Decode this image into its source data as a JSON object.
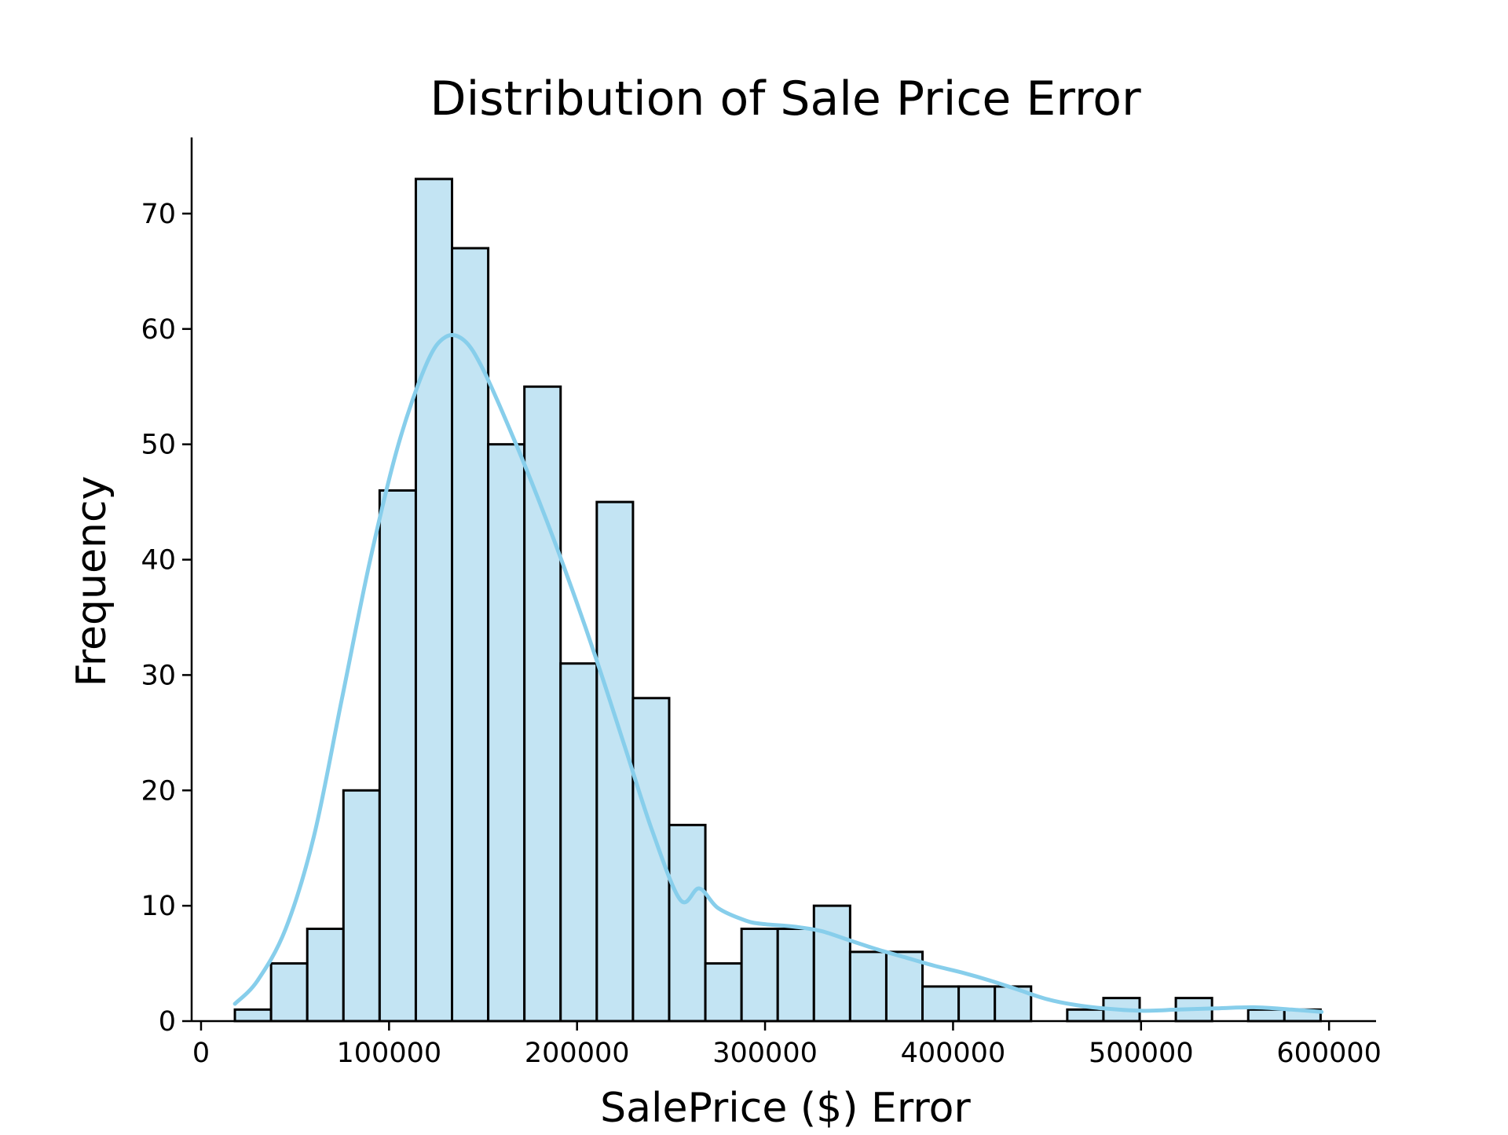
{
  "chart_data": {
    "type": "bar",
    "title": "Distribution of Sale Price Error",
    "xlabel": "SalePrice ($) Error",
    "ylabel": "Frequency",
    "xlim": [
      -5000,
      625000
    ],
    "ylim": [
      0,
      76.6
    ],
    "x_ticks": [
      0,
      100000,
      200000,
      300000,
      400000,
      500000,
      600000
    ],
    "x_tick_labels": [
      "0",
      "100000",
      "200000",
      "300000",
      "400000",
      "500000",
      "600000"
    ],
    "y_ticks": [
      0,
      10,
      20,
      30,
      40,
      50,
      60,
      70
    ],
    "y_tick_labels": [
      "0",
      "10",
      "20",
      "30",
      "40",
      "50",
      "60",
      "70"
    ],
    "bins": {
      "start": 18000,
      "width": 19250,
      "counts": [
        1,
        5,
        8,
        20,
        46,
        73,
        67,
        50,
        55,
        31,
        45,
        28,
        17,
        5,
        8,
        8,
        10,
        6,
        6,
        3,
        3,
        3,
        0,
        1,
        2,
        0,
        2,
        0,
        1,
        1
      ]
    },
    "kde": {
      "x": [
        18000,
        30000,
        45000,
        60000,
        75000,
        90000,
        105000,
        120000,
        130000,
        140000,
        150000,
        165000,
        180000,
        195000,
        210000,
        225000,
        240000,
        255000,
        265000,
        275000,
        290000,
        300000,
        315000,
        330000,
        345000,
        360000,
        375000,
        390000,
        405000,
        420000,
        435000,
        450000,
        465000,
        480000,
        500000,
        520000,
        540000,
        560000,
        580000,
        596000
      ],
      "y": [
        1.5,
        3.5,
        8,
        16,
        28,
        40,
        50,
        57,
        59.3,
        59,
        56.5,
        51,
        45,
        38.5,
        31.5,
        24,
        16.5,
        10.5,
        11.5,
        9.8,
        8.7,
        8.4,
        8.2,
        7.8,
        7,
        6.2,
        5.5,
        4.8,
        4.2,
        3.5,
        2.7,
        1.9,
        1.4,
        1.1,
        0.9,
        1.0,
        1.1,
        1.2,
        1.0,
        0.8
      ]
    },
    "colors": {
      "bar_fill": "#c3e4f3",
      "bar_edge": "#000000",
      "kde_line": "#87ceeb",
      "axis": "#000000"
    },
    "grid": false,
    "legend": "none"
  }
}
